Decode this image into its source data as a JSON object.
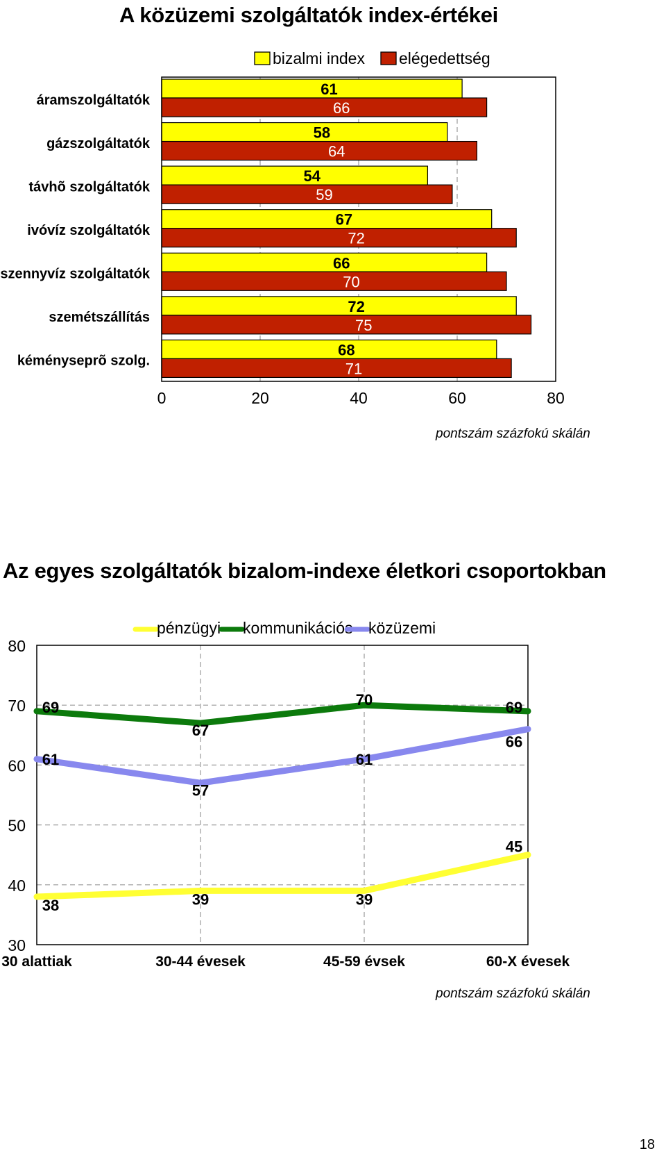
{
  "page": {
    "title": "A közüzemi szolgáltatók index-értékei",
    "section_title": "Az egyes szolgáltatók bizalom-indexe életkori csoportokban",
    "page_number": "18"
  },
  "chart_data": [
    {
      "type": "bar",
      "orientation": "horizontal",
      "title": "",
      "xlabel": "",
      "ylabel": "",
      "note": "pontszám százfokú skálán",
      "categories": [
        "áramszolgáltatók",
        "gázszolgáltatók",
        "távhõ szolgáltatók",
        "ivóvíz szolgáltatók",
        "szennyvíz szolgáltatók",
        "szemétszállítás",
        "kéményseprõ szolg."
      ],
      "series": [
        {
          "name": "bizalmi index",
          "color": "#ffff00",
          "values": [
            61,
            58,
            54,
            67,
            66,
            72,
            68
          ]
        },
        {
          "name": "elégedettség",
          "color": "#c02000",
          "values": [
            66,
            64,
            59,
            72,
            70,
            75,
            71
          ]
        }
      ],
      "xlim": [
        0,
        80
      ],
      "xticks": [
        0,
        20,
        40,
        60,
        80
      ],
      "grid": "vertical dashed",
      "legend": "top"
    },
    {
      "type": "line",
      "title": "",
      "xlabel": "",
      "ylabel": "",
      "note": "pontszám százfokú skálán",
      "categories": [
        "30 alattiak",
        "30-44 évesek",
        "45-59 évsek",
        "60-X évesek"
      ],
      "series": [
        {
          "name": "pénzügyi",
          "color": "#ffff33",
          "values": [
            38,
            39,
            39,
            45
          ]
        },
        {
          "name": "kommunikációs",
          "color": "#0c7a0c",
          "values": [
            69,
            67,
            70,
            69
          ]
        },
        {
          "name": "közüzemi",
          "color": "#8888ee",
          "values": [
            61,
            57,
            61,
            66
          ]
        }
      ],
      "ylim": [
        30,
        80
      ],
      "yticks": [
        30,
        40,
        50,
        60,
        70,
        80
      ],
      "grid": "dashed",
      "legend": "top"
    }
  ]
}
